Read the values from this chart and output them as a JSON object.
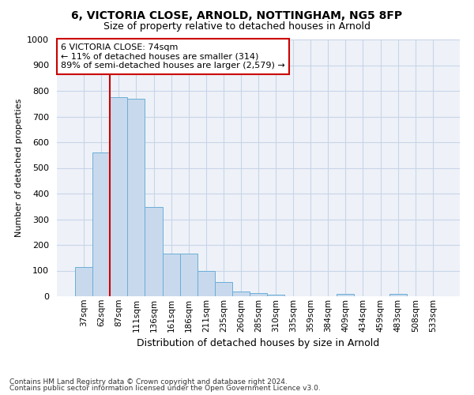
{
  "title1": "6, VICTORIA CLOSE, ARNOLD, NOTTINGHAM, NG5 8FP",
  "title2": "Size of property relative to detached houses in Arnold",
  "xlabel": "Distribution of detached houses by size in Arnold",
  "ylabel": "Number of detached properties",
  "categories": [
    "37sqm",
    "62sqm",
    "87sqm",
    "111sqm",
    "136sqm",
    "161sqm",
    "186sqm",
    "211sqm",
    "235sqm",
    "260sqm",
    "285sqm",
    "310sqm",
    "335sqm",
    "359sqm",
    "384sqm",
    "409sqm",
    "434sqm",
    "459sqm",
    "483sqm",
    "508sqm",
    "533sqm"
  ],
  "values": [
    115,
    560,
    775,
    770,
    348,
    165,
    165,
    97,
    54,
    18,
    13,
    7,
    0,
    0,
    0,
    10,
    0,
    0,
    10,
    0,
    0
  ],
  "bar_color": "#c8d9ed",
  "bar_edge_color": "#6baed6",
  "ylim": [
    0,
    1000
  ],
  "yticks": [
    0,
    100,
    200,
    300,
    400,
    500,
    600,
    700,
    800,
    900,
    1000
  ],
  "vline_position": 1.5,
  "vline_color": "#cc0000",
  "property_label": "6 VICTORIA CLOSE: 74sqm",
  "annotation_line1": "← 11% of detached houses are smaller (314)",
  "annotation_line2": "89% of semi-detached houses are larger (2,579) →",
  "footer_line1": "Contains HM Land Registry data © Crown copyright and database right 2024.",
  "footer_line2": "Contains public sector information licensed under the Open Government Licence v3.0.",
  "bg_color": "#ffffff",
  "plot_bg_color": "#eef2f8",
  "grid_color": "#c8d4e8",
  "annotation_box_facecolor": "#ffffff",
  "annotation_box_edgecolor": "#cc0000"
}
